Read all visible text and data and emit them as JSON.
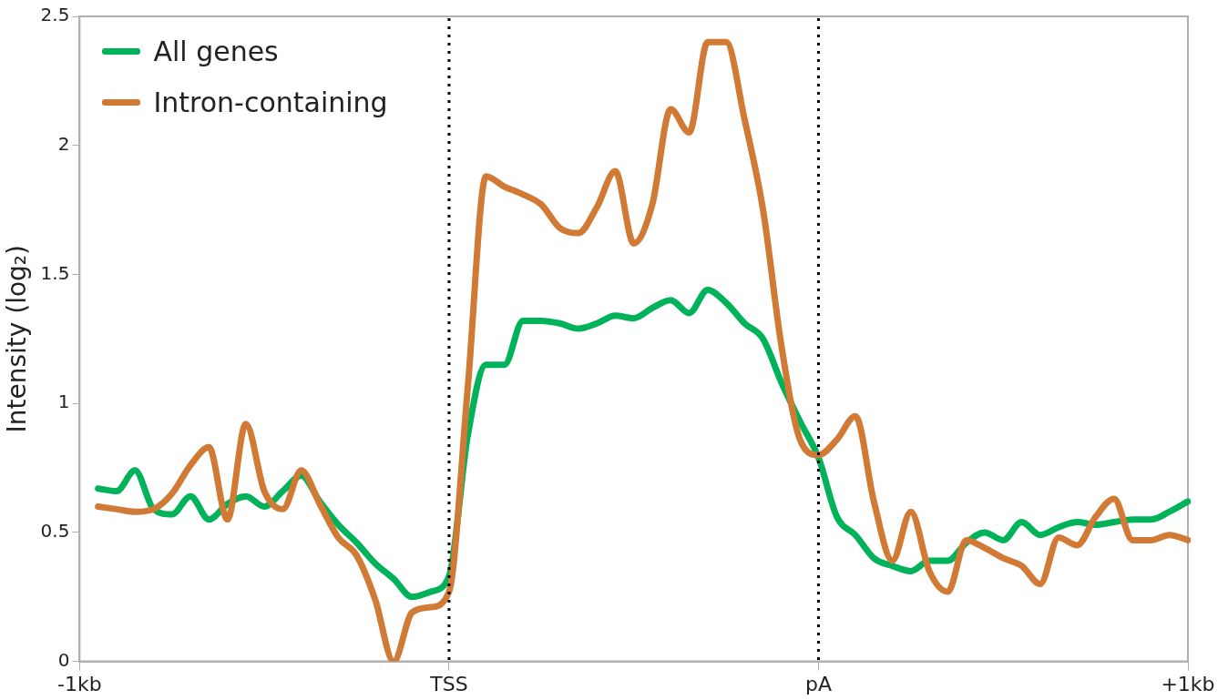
{
  "chart_data": {
    "type": "line",
    "ylabel": "Intensity (log₂)",
    "categories": [
      "-1kb",
      null,
      null,
      null,
      null,
      null,
      null,
      null,
      null,
      null,
      null,
      null,
      null,
      null,
      null,
      null,
      null,
      null,
      null,
      null,
      "TSS",
      null,
      null,
      null,
      null,
      null,
      null,
      null,
      null,
      null,
      null,
      null,
      null,
      null,
      null,
      null,
      null,
      null,
      null,
      null,
      "pA",
      null,
      null,
      null,
      null,
      null,
      null,
      null,
      null,
      null,
      null,
      null,
      null,
      null,
      null,
      null,
      null,
      null,
      null,
      null,
      "+1kb"
    ],
    "ylim": [
      0,
      2.5
    ],
    "yticks": [
      0,
      0.5,
      1,
      1.5,
      2,
      2.5
    ],
    "grid": false,
    "legend": "top left",
    "marker": "none",
    "line_style": "solid",
    "ref_lines": [
      {
        "axis": "x",
        "value": "TSS",
        "color": "#000000",
        "line_style": "dotted"
      },
      {
        "axis": "x",
        "value": "pA",
        "color": "#000000",
        "line_style": "dotted"
      }
    ],
    "series": [
      {
        "name": "Intron-containing",
        "color": "#d07a35",
        "values": [
          null,
          0.6,
          0.59,
          0.58,
          0.59,
          0.65,
          0.76,
          0.83,
          0.55,
          0.92,
          0.66,
          0.59,
          0.74,
          0.61,
          0.48,
          0.41,
          0.24,
          0.0,
          0.19,
          0.21,
          0.27,
          1.05,
          1.88,
          1.84,
          1.81,
          1.77,
          1.68,
          1.66,
          1.76,
          1.9,
          1.62,
          1.77,
          2.14,
          2.05,
          2.4,
          2.4,
          2.1,
          1.75,
          1.22,
          0.86,
          0.8,
          0.86,
          0.95,
          0.62,
          0.39,
          0.58,
          0.35,
          0.27,
          0.47,
          0.44,
          0.4,
          0.37,
          0.3,
          0.48,
          0.45,
          0.56,
          0.63,
          0.47,
          0.47,
          0.49,
          0.47
        ]
      },
      {
        "name": "All genes",
        "color": "#00b35a",
        "values": [
          null,
          0.67,
          0.66,
          0.74,
          0.59,
          0.57,
          0.64,
          0.55,
          0.61,
          0.64,
          0.6,
          0.66,
          0.72,
          0.62,
          0.53,
          0.46,
          0.38,
          0.32,
          0.25,
          0.27,
          0.33,
          0.87,
          1.15,
          1.15,
          1.32,
          1.32,
          1.31,
          1.29,
          1.31,
          1.34,
          1.33,
          1.37,
          1.4,
          1.35,
          1.44,
          1.39,
          1.31,
          1.25,
          1.08,
          0.93,
          0.79,
          0.56,
          0.49,
          0.4,
          0.37,
          0.35,
          0.39,
          0.39,
          0.46,
          0.5,
          0.47,
          0.54,
          0.49,
          0.52,
          0.54,
          0.53,
          0.54,
          0.55,
          0.55,
          0.58,
          0.62
        ]
      }
    ]
  }
}
